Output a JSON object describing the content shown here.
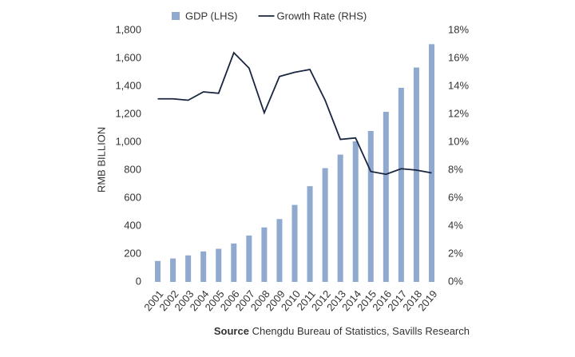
{
  "chart_data": {
    "type": "bar",
    "categories": [
      "2001",
      "2002",
      "2003",
      "2004",
      "2005",
      "2006",
      "2007",
      "2008",
      "2009",
      "2010",
      "2011",
      "2012",
      "2013",
      "2014",
      "2015",
      "2016",
      "2017",
      "2018",
      "2019"
    ],
    "series": [
      {
        "name": "GDP (LHS)",
        "type": "bar",
        "color": "#8fa9cf",
        "values": [
          150,
          168,
          190,
          218,
          237,
          275,
          332,
          390,
          450,
          551,
          685,
          814,
          911,
          1006,
          1080,
          1217,
          1389,
          1534,
          1701
        ]
      },
      {
        "name": "Growth Rate (RHS)",
        "type": "line",
        "color": "#1a2540",
        "axis": "y2",
        "values": [
          13.1,
          13.1,
          13.0,
          13.6,
          13.5,
          16.4,
          15.3,
          12.1,
          14.7,
          15.0,
          15.2,
          13.0,
          10.2,
          10.3,
          7.9,
          7.7,
          8.1,
          8.0,
          7.8
        ]
      }
    ],
    "y_label": "RMB BILLION",
    "ylim": [
      0,
      1800
    ],
    "yticks": [
      0,
      200,
      400,
      600,
      800,
      {
        "value": 1000,
        "label": "1,000"
      },
      {
        "value": 1200,
        "label": "1,200"
      },
      {
        "value": 1400,
        "label": "1,400"
      },
      {
        "value": 1600,
        "label": "1,600"
      },
      {
        "value": 1800,
        "label": "1,800"
      }
    ],
    "y2lim": [
      0,
      18
    ],
    "y2ticks": [
      {
        "value": 0,
        "label": "0%"
      },
      {
        "value": 2,
        "label": "2%"
      },
      {
        "value": 4,
        "label": "4%"
      },
      {
        "value": 6,
        "label": "6%"
      },
      {
        "value": 8,
        "label": "8%"
      },
      {
        "value": 10,
        "label": "10%"
      },
      {
        "value": 12,
        "label": "12%"
      },
      {
        "value": 14,
        "label": "14%"
      },
      {
        "value": 16,
        "label": "16%"
      },
      {
        "value": 18,
        "label": "18%"
      }
    ],
    "grid": false,
    "legend": "top",
    "source": {
      "label": "Source",
      "text": "Chengdu Bureau of Statistics, Savills Research"
    }
  }
}
